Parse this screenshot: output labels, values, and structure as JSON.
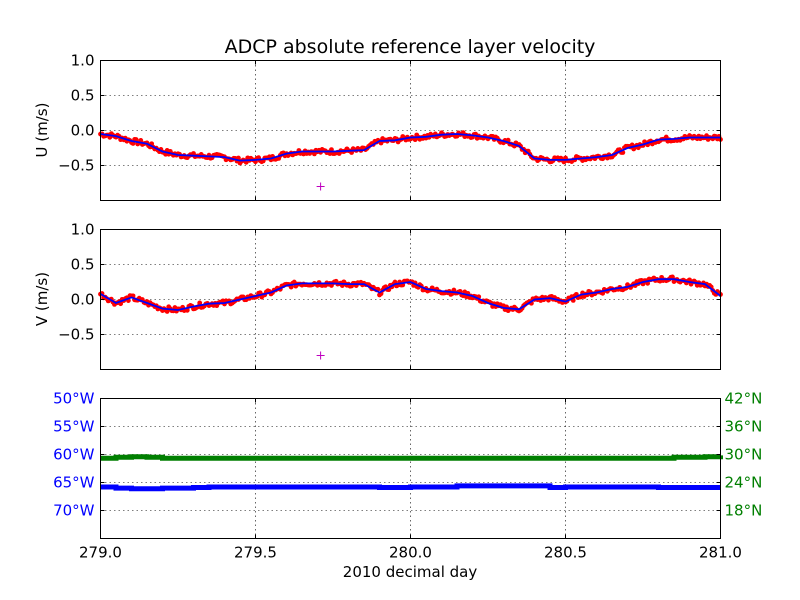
{
  "chart_data": [
    {
      "type": "scatter",
      "title": "ADCP absolute reference layer velocity",
      "ylabel": "U (m/s)",
      "xlim": [
        279.0,
        281.0
      ],
      "ylim": [
        -1.0,
        1.0
      ],
      "yticks": [
        {
          "value": 1.0,
          "label": "1.0"
        },
        {
          "value": 0.5,
          "label": "0.5"
        },
        {
          "value": 0.0,
          "label": "0.0"
        },
        {
          "value": -0.5,
          "label": "−0.5"
        }
      ],
      "grid": true,
      "series": [
        {
          "role": "raw",
          "color": "#ff0000",
          "marker": "dot",
          "x": [
            279.0,
            279.05,
            279.1,
            279.15,
            279.2,
            279.25,
            279.3,
            279.35,
            279.4,
            279.45,
            279.5,
            279.55,
            279.6,
            279.65,
            279.7,
            279.75,
            279.8,
            279.85,
            279.9,
            279.95,
            280.0,
            280.05,
            280.1,
            280.15,
            280.2,
            280.25,
            280.3,
            280.35,
            280.4,
            280.45,
            280.5,
            280.55,
            280.6,
            280.65,
            280.7,
            280.75,
            280.8,
            280.85,
            280.9,
            280.95,
            281.0
          ],
          "y": [
            -0.05,
            -0.08,
            -0.15,
            -0.19,
            -0.3,
            -0.35,
            -0.36,
            -0.37,
            -0.38,
            -0.43,
            -0.42,
            -0.4,
            -0.33,
            -0.3,
            -0.3,
            -0.3,
            -0.29,
            -0.28,
            -0.15,
            -0.14,
            -0.1,
            -0.09,
            -0.06,
            -0.05,
            -0.07,
            -0.1,
            -0.15,
            -0.22,
            -0.4,
            -0.42,
            -0.42,
            -0.4,
            -0.38,
            -0.35,
            -0.25,
            -0.2,
            -0.13,
            -0.12,
            -0.1,
            -0.1,
            -0.1
          ]
        },
        {
          "role": "smoothed",
          "color": "#0000ff",
          "marker": "line",
          "x": [
            279.0,
            279.05,
            279.1,
            279.15,
            279.2,
            279.25,
            279.3,
            279.35,
            279.4,
            279.45,
            279.5,
            279.55,
            279.6,
            279.65,
            279.7,
            279.75,
            279.8,
            279.85,
            279.9,
            279.95,
            280.0,
            280.05,
            280.1,
            280.15,
            280.2,
            280.25,
            280.3,
            280.35,
            280.4,
            280.45,
            280.5,
            280.55,
            280.6,
            280.65,
            280.7,
            280.75,
            280.8,
            280.85,
            280.9,
            280.95,
            281.0
          ],
          "y": [
            -0.05,
            -0.08,
            -0.15,
            -0.19,
            -0.3,
            -0.35,
            -0.36,
            -0.37,
            -0.38,
            -0.43,
            -0.42,
            -0.4,
            -0.33,
            -0.3,
            -0.3,
            -0.3,
            -0.29,
            -0.28,
            -0.15,
            -0.14,
            -0.1,
            -0.09,
            -0.06,
            -0.05,
            -0.07,
            -0.1,
            -0.15,
            -0.22,
            -0.4,
            -0.42,
            -0.42,
            -0.4,
            -0.38,
            -0.35,
            -0.25,
            -0.2,
            -0.13,
            -0.12,
            -0.1,
            -0.1,
            -0.1
          ]
        },
        {
          "role": "marker",
          "color": "#bf00bf",
          "marker": "plus",
          "x": [
            279.71
          ],
          "y": [
            -0.8
          ]
        }
      ]
    },
    {
      "type": "scatter",
      "ylabel": "V (m/s)",
      "xlim": [
        279.0,
        281.0
      ],
      "ylim": [
        -1.0,
        1.0
      ],
      "yticks": [
        {
          "value": 1.0,
          "label": "1.0"
        },
        {
          "value": 0.5,
          "label": "0.5"
        },
        {
          "value": 0.0,
          "label": "0.0"
        },
        {
          "value": -0.5,
          "label": "−0.5"
        }
      ],
      "grid": true,
      "series": [
        {
          "role": "raw",
          "color": "#ff0000",
          "marker": "dot",
          "x": [
            279.0,
            279.05,
            279.1,
            279.15,
            279.2,
            279.25,
            279.3,
            279.35,
            279.4,
            279.45,
            279.5,
            279.55,
            279.6,
            279.65,
            279.7,
            279.75,
            279.8,
            279.85,
            279.9,
            279.95,
            280.0,
            280.05,
            280.1,
            280.15,
            280.2,
            280.25,
            280.3,
            280.35,
            280.4,
            280.45,
            280.5,
            280.55,
            280.6,
            280.65,
            280.7,
            280.75,
            280.8,
            280.85,
            280.9,
            280.95,
            281.0
          ],
          "y": [
            0.08,
            -0.05,
            0.03,
            -0.05,
            -0.13,
            -0.15,
            -0.1,
            -0.06,
            -0.05,
            0.0,
            0.05,
            0.1,
            0.2,
            0.23,
            0.23,
            0.23,
            0.22,
            0.22,
            0.1,
            0.22,
            0.25,
            0.15,
            0.12,
            0.1,
            0.05,
            -0.05,
            -0.12,
            -0.14,
            0.0,
            0.02,
            -0.03,
            0.07,
            0.1,
            0.15,
            0.18,
            0.25,
            0.29,
            0.29,
            0.25,
            0.22,
            0.05
          ]
        },
        {
          "role": "smoothed",
          "color": "#0000ff",
          "marker": "line",
          "x": [
            279.0,
            279.05,
            279.1,
            279.15,
            279.2,
            279.25,
            279.3,
            279.35,
            279.4,
            279.45,
            279.5,
            279.55,
            279.6,
            279.65,
            279.7,
            279.75,
            279.8,
            279.85,
            279.9,
            279.95,
            280.0,
            280.05,
            280.1,
            280.15,
            280.2,
            280.25,
            280.3,
            280.35,
            280.4,
            280.45,
            280.5,
            280.55,
            280.6,
            280.65,
            280.7,
            280.75,
            280.8,
            280.85,
            280.9,
            280.95,
            281.0
          ],
          "y": [
            0.08,
            -0.05,
            0.03,
            -0.05,
            -0.13,
            -0.15,
            -0.1,
            -0.06,
            -0.05,
            0.0,
            0.05,
            0.1,
            0.2,
            0.23,
            0.23,
            0.23,
            0.22,
            0.22,
            0.1,
            0.22,
            0.25,
            0.15,
            0.12,
            0.1,
            0.05,
            -0.05,
            -0.12,
            -0.14,
            0.0,
            0.02,
            -0.03,
            0.07,
            0.1,
            0.15,
            0.18,
            0.25,
            0.29,
            0.29,
            0.25,
            0.22,
            0.05
          ]
        },
        {
          "role": "marker",
          "color": "#bf00bf",
          "marker": "plus",
          "x": [
            279.71
          ],
          "y": [
            -0.8
          ]
        }
      ]
    },
    {
      "type": "line",
      "xlabel": "2010 decimal day",
      "xlim": [
        279.0,
        281.0
      ],
      "xticks": [
        {
          "value": 279.0,
          "label": "279.0"
        },
        {
          "value": 279.5,
          "label": "279.5"
        },
        {
          "value": 280.0,
          "label": "280.0"
        },
        {
          "value": 280.5,
          "label": "280.5"
        },
        {
          "value": 281.0,
          "label": "281.0"
        }
      ],
      "grid": true,
      "left_axis": {
        "color": "#0000ff",
        "ylim": [
          -75,
          -50
        ],
        "yticks": [
          {
            "value": -50,
            "label": "50°W"
          },
          {
            "value": -55,
            "label": "55°W"
          },
          {
            "value": -60,
            "label": "60°W"
          },
          {
            "value": -65,
            "label": "65°W"
          },
          {
            "value": -70,
            "label": "70°W"
          }
        ]
      },
      "right_axis": {
        "color": "#007f00",
        "ylim": [
          12,
          42
        ],
        "yticks": [
          {
            "value": 42,
            "label": "42°N"
          },
          {
            "value": 36,
            "label": "36°N"
          },
          {
            "value": 30,
            "label": "30°N"
          },
          {
            "value": 24,
            "label": "24°N"
          },
          {
            "value": 18,
            "label": "18°N"
          }
        ]
      },
      "series": [
        {
          "role": "longitude",
          "axis": "left",
          "color": "#0000ff",
          "x": [
            279.0,
            279.05,
            279.1,
            279.2,
            279.3,
            279.35,
            279.5,
            279.7,
            279.85,
            279.9,
            280.0,
            280.1,
            280.15,
            280.3,
            280.4,
            280.45,
            280.5,
            280.6,
            280.8,
            281.0
          ],
          "y": [
            -65.8,
            -66.0,
            -66.1,
            -66.0,
            -65.9,
            -65.8,
            -65.8,
            -65.8,
            -65.8,
            -65.9,
            -65.8,
            -65.8,
            -65.6,
            -65.6,
            -65.6,
            -65.9,
            -65.8,
            -65.8,
            -65.9,
            -65.9
          ]
        },
        {
          "role": "latitude",
          "axis": "right",
          "color": "#007f00",
          "x": [
            279.0,
            279.05,
            279.1,
            279.15,
            279.2,
            279.5,
            280.0,
            280.5,
            280.85,
            280.95,
            281.0
          ],
          "y": [
            29.2,
            29.4,
            29.5,
            29.4,
            29.2,
            29.2,
            29.2,
            29.2,
            29.4,
            29.5,
            29.8
          ]
        }
      ]
    }
  ]
}
